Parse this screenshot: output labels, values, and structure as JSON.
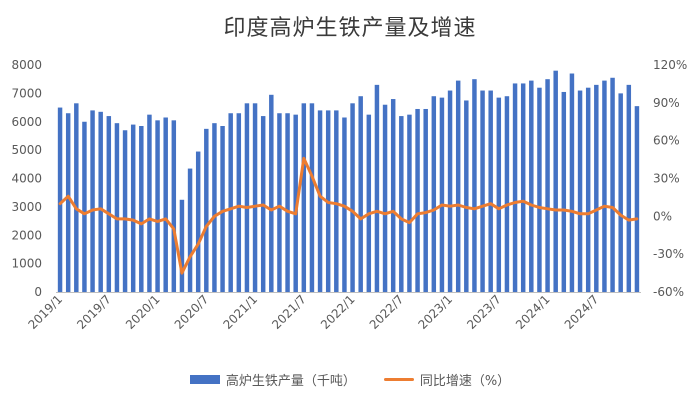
{
  "chart_data": {
    "type": "bar+line",
    "title": "印度高炉生铁产量及增速",
    "colors": {
      "bar": "#4472C4",
      "line": "#ED7D31",
      "axis": "#bfbfbf",
      "text": "#595959"
    },
    "x_tick_labels": [
      "2019/1",
      "2019/7",
      "2020/1",
      "2020/7",
      "2021/1",
      "2021/7",
      "2022/1",
      "2022/7",
      "2023/1",
      "2023/7",
      "2024/1",
      "2024/7"
    ],
    "left_axis": {
      "min": 0,
      "max": 8000,
      "step": 1000,
      "tick_labels": [
        "0",
        "1000",
        "2000",
        "3000",
        "4000",
        "5000",
        "6000",
        "7000",
        "8000"
      ]
    },
    "right_axis": {
      "min": -60,
      "max": 120,
      "step": 30,
      "tick_labels": [
        "-60%",
        "-30%",
        "0%",
        "30%",
        "60%",
        "90%",
        "120%"
      ]
    },
    "categories": [
      "2019/1",
      "2019/2",
      "2019/3",
      "2019/4",
      "2019/5",
      "2019/6",
      "2019/7",
      "2019/8",
      "2019/9",
      "2019/10",
      "2019/11",
      "2019/12",
      "2020/1",
      "2020/2",
      "2020/3",
      "2020/4",
      "2020/5",
      "2020/6",
      "2020/7",
      "2020/8",
      "2020/9",
      "2020/10",
      "2020/11",
      "2020/12",
      "2021/1",
      "2021/2",
      "2021/3",
      "2021/4",
      "2021/5",
      "2021/6",
      "2021/7",
      "2021/8",
      "2021/9",
      "2021/10",
      "2021/11",
      "2021/12",
      "2022/1",
      "2022/2",
      "2022/3",
      "2022/4",
      "2022/5",
      "2022/6",
      "2022/7",
      "2022/8",
      "2022/9",
      "2022/10",
      "2022/11",
      "2022/12",
      "2023/1",
      "2023/2",
      "2023/3",
      "2023/4",
      "2023/5",
      "2023/6",
      "2023/7",
      "2023/8",
      "2023/9",
      "2023/10",
      "2023/11",
      "2023/12",
      "2024/1",
      "2024/2",
      "2024/3",
      "2024/4",
      "2024/5",
      "2024/6",
      "2024/7",
      "2024/8",
      "2024/9",
      "2024/10",
      "2024/11",
      "2024/12"
    ],
    "series": [
      {
        "name": "高炉生铁产量（千吨）",
        "axis": "left",
        "kind": "bar",
        "values": [
          6500,
          6300,
          6650,
          6000,
          6400,
          6350,
          6200,
          5950,
          5700,
          5900,
          5850,
          6250,
          6050,
          6150,
          6050,
          3250,
          4350,
          4950,
          5750,
          5950,
          5850,
          6300,
          6300,
          6650,
          6650,
          6200,
          6950,
          6300,
          6300,
          6250,
          6650,
          6650,
          6400,
          6400,
          6400,
          6150,
          6650,
          6900,
          6250,
          7300,
          6600,
          6800,
          6200,
          6250,
          6450,
          6450,
          6900,
          6850,
          7100,
          7450,
          6750,
          7500,
          7100,
          7100,
          6850,
          6900,
          7350,
          7350,
          7450,
          7200,
          7500,
          7800,
          7050,
          7700,
          7100,
          7200,
          7300,
          7450,
          7550,
          7000,
          7300,
          6550
        ]
      },
      {
        "name": "同比增速（%）",
        "axis": "right",
        "kind": "line",
        "values": [
          10,
          16,
          6,
          2,
          5,
          6,
          2,
          -2,
          -2,
          -3,
          -6,
          -2,
          -4,
          -2,
          -10,
          -45,
          -32,
          -22,
          -8,
          0,
          4,
          6,
          8,
          7,
          8,
          9,
          5,
          8,
          4,
          2,
          46,
          32,
          16,
          11,
          10,
          8,
          4,
          -2,
          2,
          4,
          2,
          4,
          -2,
          -5,
          2,
          3,
          5,
          9,
          8,
          9,
          7,
          6,
          8,
          10,
          6,
          9,
          11,
          12,
          9,
          7,
          6,
          5,
          5,
          4,
          2,
          2,
          5,
          8,
          7,
          1,
          -3,
          -2
        ]
      }
    ]
  }
}
